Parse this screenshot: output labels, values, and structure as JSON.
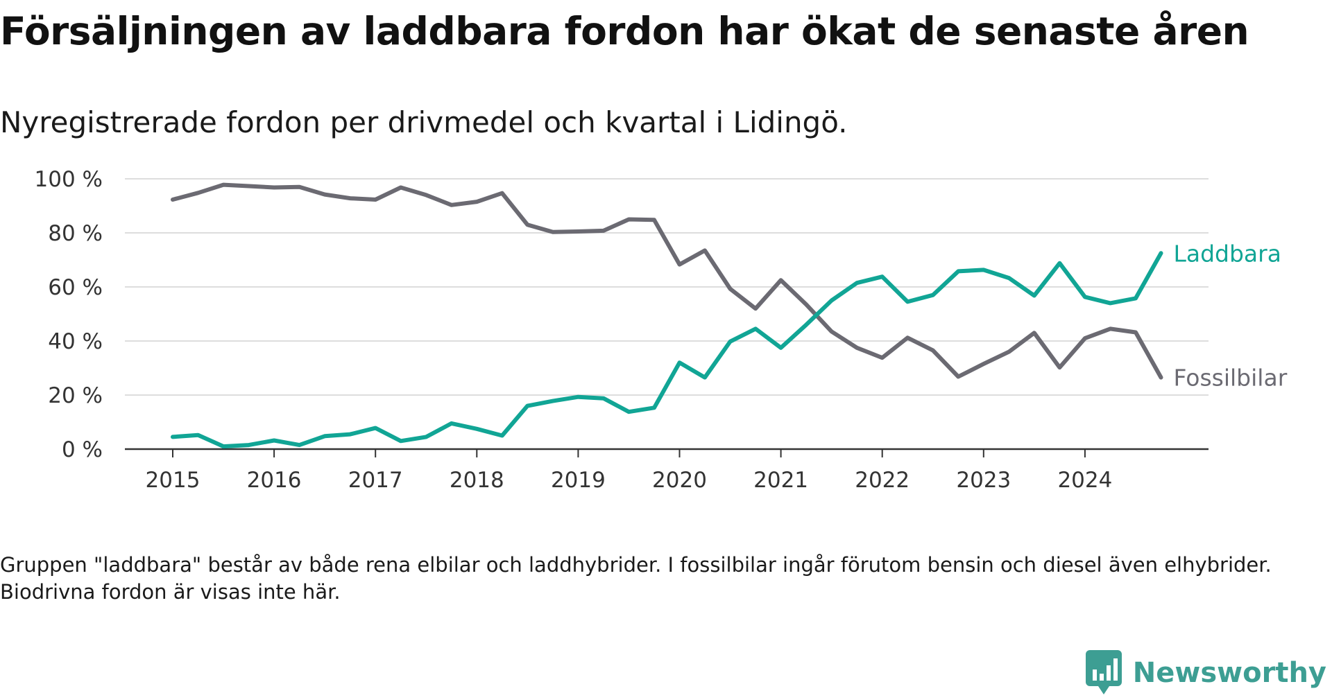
{
  "title": "Försäljningen av laddbara fordon har ökat de senaste åren",
  "subtitle": "Nyregistrerade fordon per drivmedel och kvartal i Lidingö.",
  "footnote": "Gruppen \"laddbara\" består av både rena elbilar och laddhybrider. I fossilbilar ingår förutom bensin och diesel även elhybrider. Biodrivna fordon är visas inte här.",
  "brand": "Newsworthy",
  "colors": {
    "laddbara": "#11a595",
    "fossilbilar": "#6b6a72",
    "grid": "#dddddd",
    "axis": "#333333",
    "brand": "#3d9e93"
  },
  "chart_data": {
    "type": "line",
    "title": "Försäljningen av laddbara fordon har ökat de senaste åren",
    "subtitle": "Nyregistrerade fordon per drivmedel och kvartal i Lidingö.",
    "xlabel": "",
    "ylabel": "",
    "ylim": [
      0,
      100
    ],
    "xlim": [
      2014.5,
      2025.25
    ],
    "grid": true,
    "yticks": [
      0,
      20,
      40,
      60,
      80,
      100
    ],
    "ytick_labels": [
      "0 %",
      "20 %",
      "40 %",
      "60 %",
      "80 %",
      "100 %"
    ],
    "xticks": [
      2015,
      2016,
      2017,
      2018,
      2019,
      2020,
      2021,
      2022,
      2023,
      2024
    ],
    "xtick_labels": [
      "2015",
      "2016",
      "2017",
      "2018",
      "2019",
      "2020",
      "2021",
      "2022",
      "2023",
      "2024"
    ],
    "legend": "direct labels at line ends",
    "x": [
      2015.0,
      2015.25,
      2015.5,
      2015.75,
      2016.0,
      2016.25,
      2016.5,
      2016.75,
      2017.0,
      2017.25,
      2017.5,
      2017.75,
      2018.0,
      2018.25,
      2018.5,
      2018.75,
      2019.0,
      2019.25,
      2019.5,
      2019.75,
      2020.0,
      2020.25,
      2020.5,
      2020.75,
      2021.0,
      2021.25,
      2021.5,
      2021.75,
      2022.0,
      2022.25,
      2022.5,
      2022.75,
      2023.0,
      2023.25,
      2023.5,
      2023.75,
      2024.0,
      2024.25,
      2024.5,
      2024.75
    ],
    "series": [
      {
        "name": "Laddbara",
        "key": "laddbara",
        "values": [
          4.5,
          5.2,
          1,
          1.5,
          3.2,
          1.5,
          4.8,
          5.5,
          7.8,
          3,
          4.5,
          9.5,
          7.5,
          5,
          16,
          17.8,
          19.3,
          18.8,
          13.8,
          15.3,
          32,
          26.5,
          39.8,
          44.5,
          37.5,
          46,
          55,
          61.5,
          63.8,
          54.5,
          57,
          65.8,
          66.3,
          63.3,
          56.8,
          68.8,
          56.3,
          54,
          55.8,
          72.5
        ]
      },
      {
        "name": "Fossilbilar",
        "key": "fossilbilar",
        "values": [
          92.3,
          94.8,
          97.8,
          97.3,
          96.8,
          97,
          94.2,
          92.8,
          92.3,
          96.8,
          94,
          90.3,
          91.5,
          94.7,
          83,
          80.3,
          80.5,
          80.8,
          85,
          84.8,
          68.3,
          73.5,
          59.3,
          52,
          62.5,
          53.5,
          43.5,
          37.5,
          33.8,
          41.2,
          36.5,
          26.8,
          31.5,
          36,
          43,
          30.2,
          41,
          44.5,
          43.2,
          26.5
        ]
      }
    ]
  }
}
